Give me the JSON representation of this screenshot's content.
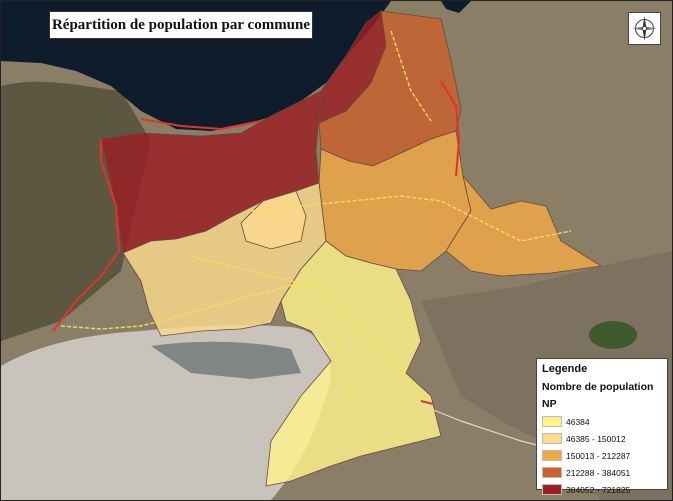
{
  "map": {
    "title": "Répartition de population par commune",
    "compass": {
      "icon": "north-arrow-compass-icon"
    },
    "basemap": {
      "type": "satellite imagery"
    },
    "colors": {
      "sea": "#0f1c2c",
      "coastline": "#2a3a3f",
      "land_dark": "#5b5740",
      "land_light": "#8a7f66",
      "lagoon": "#c8c4bc",
      "roads_main": "#e0342a",
      "roads_secondary": "#f0e05a"
    }
  },
  "legend": {
    "title": "Legende",
    "subtitle": "Nombre de population",
    "field": "NP",
    "classes": [
      {
        "label": "46384",
        "color": "#fff38c"
      },
      {
        "label": "46385 - 150012",
        "color": "#fbd98d"
      },
      {
        "label": "150013 - 212287",
        "color": "#f3a848"
      },
      {
        "label": "212288 - 384051",
        "color": "#c9602d"
      },
      {
        "label": "384052 - 721825",
        "color": "#9b1f24"
      }
    ]
  }
}
